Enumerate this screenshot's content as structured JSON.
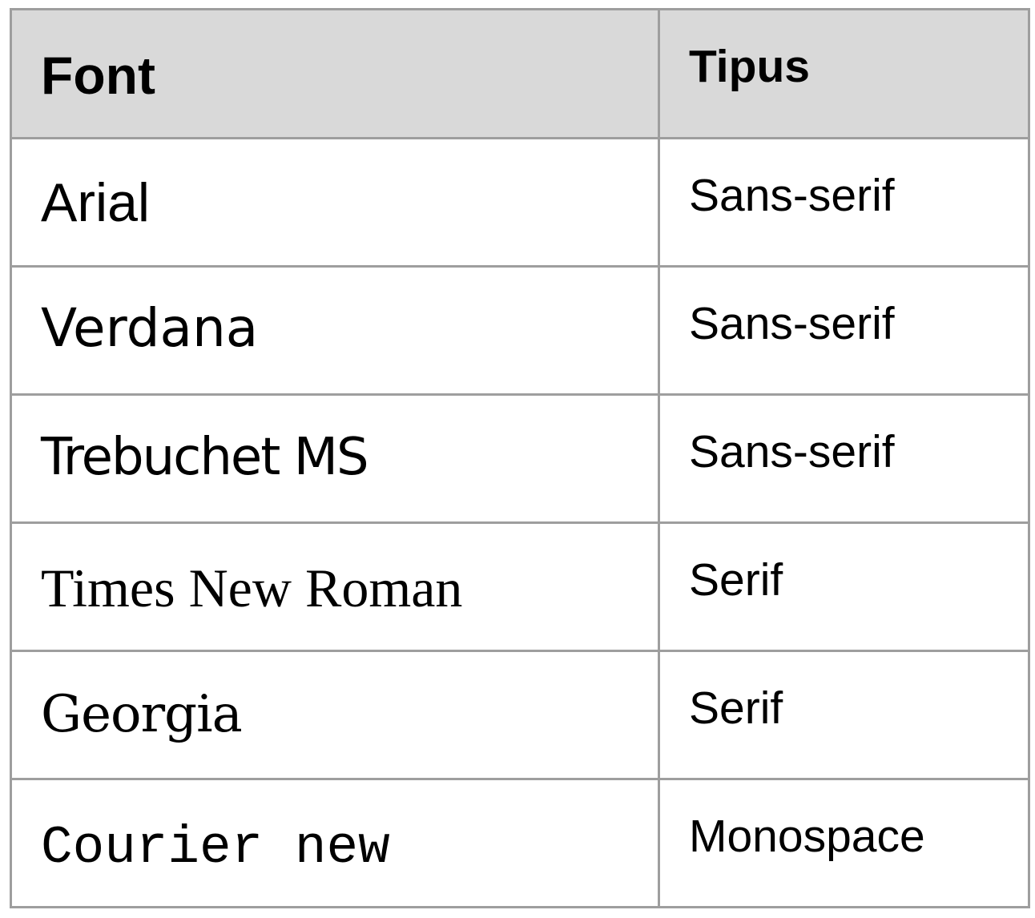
{
  "table": {
    "headers": {
      "font": "Font",
      "type": "Tipus"
    },
    "rows": [
      {
        "font": "Arial",
        "type": "Sans-serif"
      },
      {
        "font": "Verdana",
        "type": "Sans-serif"
      },
      {
        "font": "Trebuchet MS",
        "type": "Sans-serif"
      },
      {
        "font": "Times New Roman",
        "type": "Serif"
      },
      {
        "font": "Georgia",
        "type": "Serif"
      },
      {
        "font": "Courier new",
        "type": "Monospace"
      }
    ],
    "colors": {
      "header_background": "#d9d9d9",
      "border": "#9e9e9e",
      "text": "#000000"
    }
  }
}
